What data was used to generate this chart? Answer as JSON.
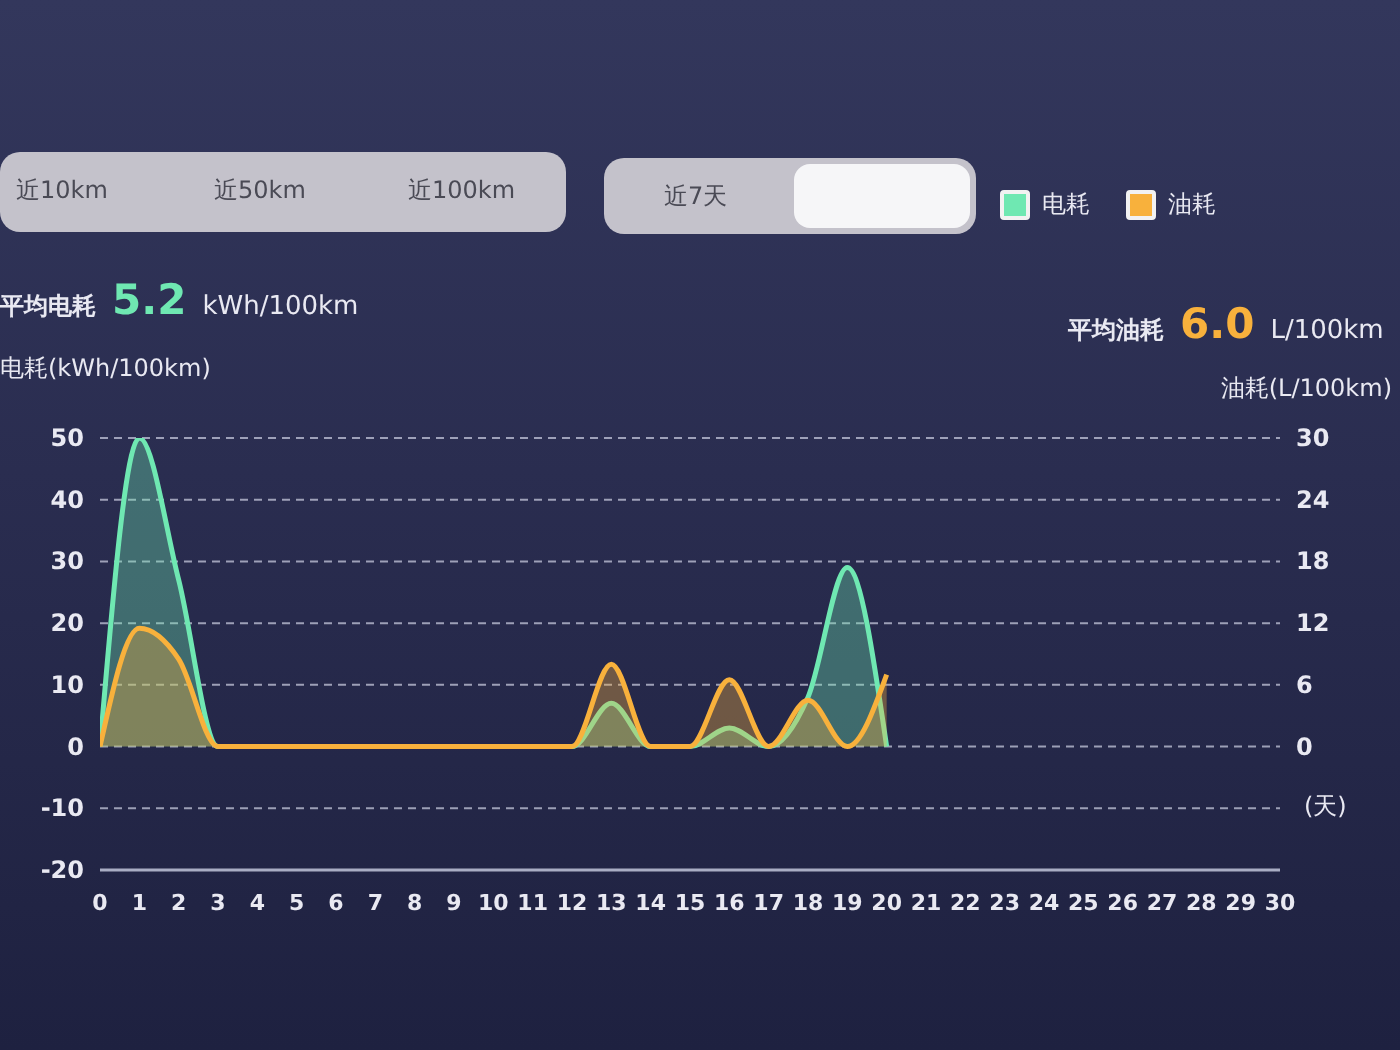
{
  "chart_data": {
    "type": "area",
    "annotations": [
      "近10km",
      "近50km",
      "近100km",
      "近7天",
      "平均电耗 5.2 kWh/100km",
      "平均油耗 6.0 L/100km"
    ],
    "xlabel": "(天)",
    "ylabel": "电耗(kWh/100km)",
    "y2label": "油耗(L/100km)",
    "x": [
      0,
      1,
      2,
      3,
      4,
      5,
      6,
      7,
      8,
      9,
      10,
      11,
      12,
      13,
      14,
      15,
      16,
      17,
      18,
      19,
      20
    ],
    "series": [
      {
        "name": "电耗",
        "color": "#6fe8b2",
        "values": [
          0,
          50,
          27,
          0,
          0,
          0,
          0,
          0,
          0,
          0,
          0,
          0,
          0,
          7,
          0,
          0,
          3,
          0,
          8,
          29,
          0
        ]
      },
      {
        "name": "油耗",
        "color": "#f8b13c",
        "axis": "y2",
        "values": [
          0,
          11.5,
          8.5,
          0,
          0,
          0,
          0,
          0,
          0,
          0,
          0,
          0,
          0,
          8,
          0,
          0,
          6.5,
          0,
          4.5,
          0,
          7
        ]
      }
    ],
    "xlim": [
      0,
      30
    ],
    "xticks": [
      0,
      1,
      2,
      3,
      4,
      5,
      6,
      7,
      8,
      9,
      10,
      11,
      12,
      13,
      14,
      15,
      16,
      17,
      18,
      19,
      20,
      21,
      22,
      23,
      24,
      25,
      26,
      27,
      28,
      29,
      30
    ],
    "ylim": [
      -20,
      50
    ],
    "yticks": [
      -20,
      -10,
      0,
      10,
      20,
      30,
      40,
      50
    ],
    "y2lim": [
      -12,
      30
    ],
    "y2ticks": [
      0,
      6,
      12,
      18,
      24,
      30
    ],
    "grid": "y",
    "legend": "top right",
    "line_style": "solid"
  }
}
